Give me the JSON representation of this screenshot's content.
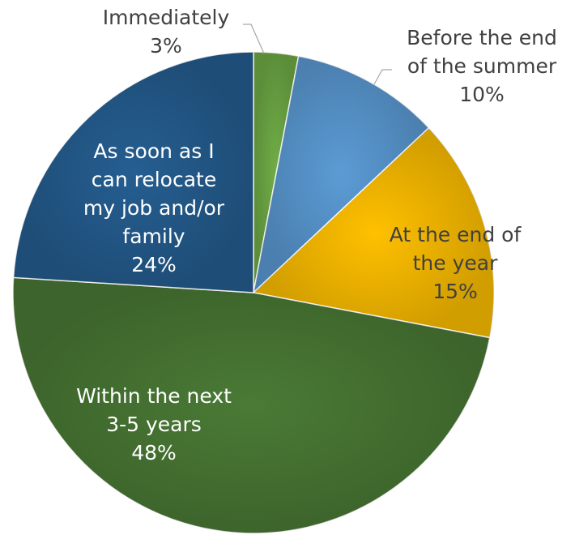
{
  "chart_data": {
    "type": "pie",
    "title": "",
    "slices": [
      {
        "label_lines": [
          "Immediately"
        ],
        "value": 3,
        "value_label": "3%",
        "color": "#70ad47"
      },
      {
        "label_lines": [
          "Before the end",
          "of the summer"
        ],
        "value": 10,
        "value_label": "10%",
        "color": "#5b9bd5"
      },
      {
        "label_lines": [
          "At the end of",
          "the year"
        ],
        "value": 15,
        "value_label": "15%",
        "color": "#ffc000"
      },
      {
        "label_lines": [
          "Within the next",
          "3-5 years"
        ],
        "value": 48,
        "value_label": "48%",
        "color": "#4a7a35"
      },
      {
        "label_lines": [
          "As soon as I",
          "can relocate",
          "my job and/or",
          "family"
        ],
        "value": 24,
        "value_label": "24%",
        "color": "#255e91"
      }
    ],
    "start_angle_deg": 0,
    "direction": "clockwise",
    "legend": "none"
  }
}
